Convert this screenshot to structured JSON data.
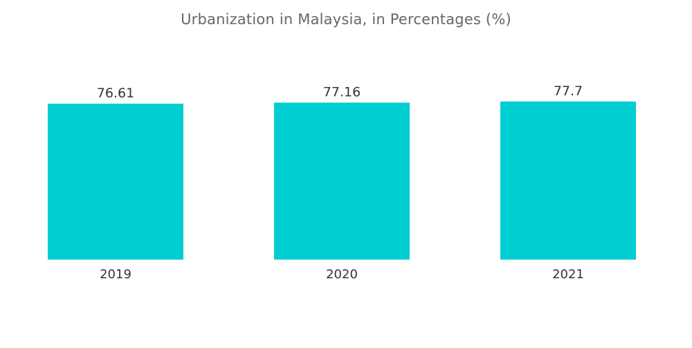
{
  "chart_data": {
    "type": "bar",
    "title": "Urbanization in Malaysia, in Percentages (%)",
    "categories": [
      "2019",
      "2020",
      "2021"
    ],
    "values": [
      76.61,
      77.16,
      77.7
    ],
    "data_labels": [
      "76.61",
      "77.16",
      "77.7"
    ],
    "xlabel": "",
    "ylabel": "",
    "grid": false,
    "legend": "none",
    "bar_color": "#00CED1"
  }
}
